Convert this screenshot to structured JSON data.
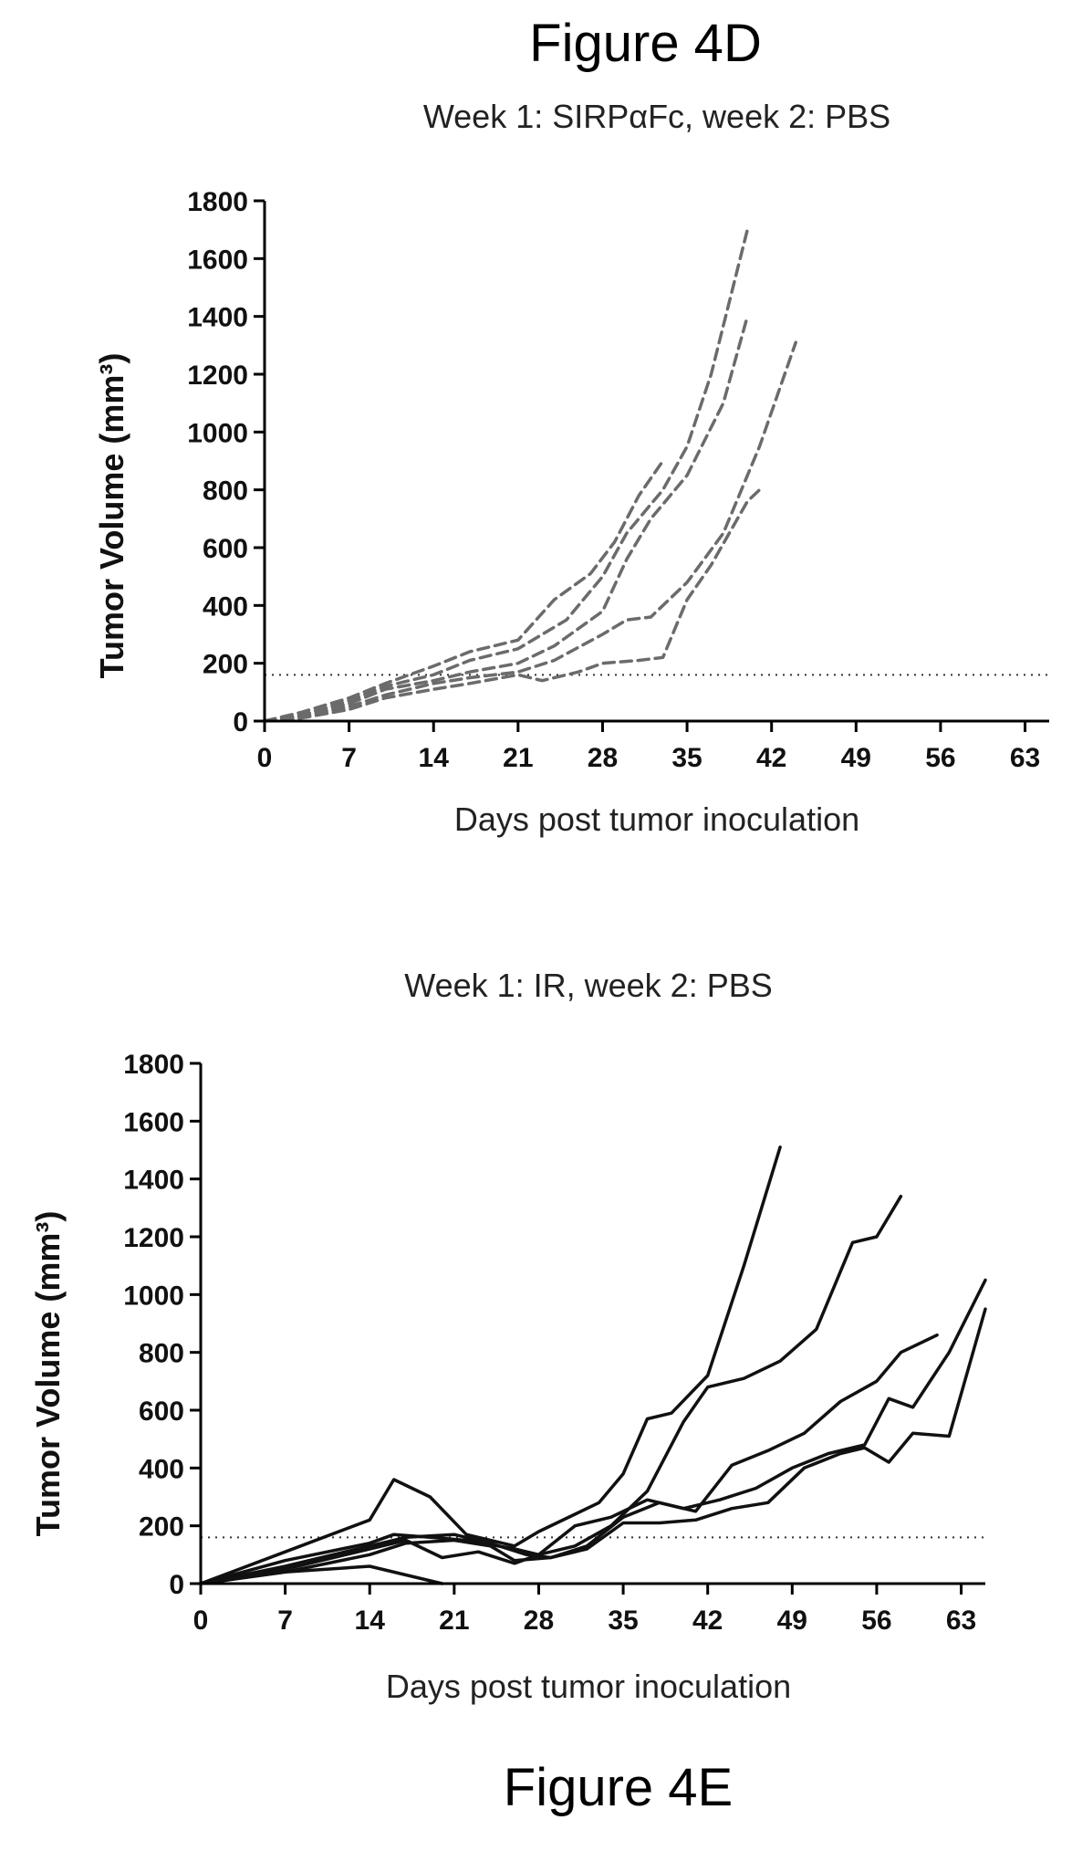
{
  "figure_labels": {
    "top": "Figure 4D",
    "bottom": "Figure 4E"
  },
  "chart_data": [
    {
      "type": "line",
      "title": "Week 1: SIRPαFc, week 2: PBS",
      "xlabel": "Days post tumor inoculation",
      "ylabel": "Tumor Volume (mm³)",
      "xlim": [
        0,
        65
      ],
      "ylim": [
        0,
        1800
      ],
      "xticks": [
        "0",
        "7",
        "14",
        "21",
        "28",
        "35",
        "42",
        "49",
        "56",
        "63"
      ],
      "yticks": [
        "0",
        "200",
        "400",
        "600",
        "800",
        "1000",
        "1200",
        "1400",
        "1600",
        "1800"
      ],
      "line_style": "dashed",
      "line_color": "#6b6b6b",
      "threshold": {
        "y": 160,
        "style": "dotted"
      },
      "series": [
        {
          "x": [
            0,
            3,
            7,
            10,
            14,
            17,
            21,
            25,
            28,
            30,
            33,
            35,
            37,
            40
          ],
          "values": [
            0,
            20,
            70,
            120,
            160,
            210,
            250,
            350,
            500,
            650,
            800,
            950,
            1200,
            1700
          ]
        },
        {
          "x": [
            0,
            3,
            7,
            10,
            14,
            17,
            21,
            24,
            27,
            29,
            31,
            33
          ],
          "values": [
            0,
            30,
            80,
            130,
            190,
            240,
            280,
            420,
            510,
            620,
            780,
            900
          ]
        },
        {
          "x": [
            0,
            3,
            7,
            10,
            14,
            17,
            21,
            24,
            28,
            30,
            32,
            35,
            38,
            40
          ],
          "values": [
            0,
            20,
            60,
            110,
            140,
            170,
            200,
            260,
            380,
            560,
            700,
            850,
            1100,
            1400
          ]
        },
        {
          "x": [
            0,
            3,
            7,
            10,
            14,
            17,
            21,
            24,
            28,
            30,
            32,
            35,
            38,
            41,
            44
          ],
          "values": [
            0,
            15,
            50,
            90,
            130,
            150,
            170,
            210,
            300,
            350,
            360,
            480,
            650,
            950,
            1310
          ]
        },
        {
          "x": [
            0,
            3,
            7,
            10,
            14,
            17,
            21,
            23,
            26,
            28,
            31,
            33,
            35,
            37,
            40,
            41
          ],
          "values": [
            0,
            10,
            40,
            80,
            110,
            130,
            160,
            140,
            170,
            200,
            210,
            220,
            420,
            540,
            760,
            800
          ]
        }
      ]
    },
    {
      "type": "line",
      "title": "Week 1: IR, week 2: PBS",
      "xlabel": "Days post tumor inoculation",
      "ylabel": "Tumor Volume (mm³)",
      "xlim": [
        0,
        65
      ],
      "ylim": [
        0,
        1800
      ],
      "xticks": [
        "0",
        "7",
        "14",
        "21",
        "28",
        "35",
        "42",
        "49",
        "56",
        "63"
      ],
      "yticks": [
        "0",
        "200",
        "400",
        "600",
        "800",
        "1000",
        "1200",
        "1400",
        "1600",
        "1800"
      ],
      "line_style": "solid",
      "line_color": "#111111",
      "threshold": {
        "y": 160,
        "style": "dotted"
      },
      "series": [
        {
          "x": [
            0,
            7,
            14,
            16,
            19,
            22,
            26,
            28,
            31,
            33,
            35,
            37,
            39,
            42,
            45,
            48
          ],
          "values": [
            0,
            110,
            220,
            360,
            300,
            170,
            130,
            180,
            240,
            280,
            380,
            570,
            590,
            720,
            1100,
            1510
          ]
        },
        {
          "x": [
            0,
            7,
            14,
            16,
            19,
            22,
            26,
            28,
            31,
            34,
            37,
            40,
            42,
            45,
            48,
            51,
            54,
            56,
            58
          ],
          "values": [
            0,
            80,
            140,
            170,
            160,
            150,
            120,
            100,
            130,
            200,
            320,
            560,
            680,
            710,
            770,
            880,
            1180,
            1200,
            1340
          ]
        },
        {
          "x": [
            0,
            7,
            14,
            17,
            21,
            24,
            27,
            29,
            32,
            35,
            38,
            41,
            44,
            47,
            50,
            53,
            56,
            58,
            61
          ],
          "values": [
            0,
            60,
            130,
            160,
            170,
            140,
            100,
            90,
            130,
            230,
            280,
            250,
            410,
            460,
            520,
            630,
            700,
            800,
            860
          ]
        },
        {
          "x": [
            0,
            7,
            14,
            17,
            20,
            23,
            26,
            28,
            31,
            34,
            37,
            40,
            43,
            46,
            49,
            52,
            55,
            57,
            59,
            62,
            65
          ],
          "values": [
            0,
            50,
            120,
            150,
            90,
            110,
            70,
            100,
            200,
            230,
            290,
            260,
            290,
            330,
            400,
            450,
            480,
            640,
            610,
            800,
            1050
          ]
        },
        {
          "x": [
            0,
            7,
            14,
            17,
            21,
            24,
            26,
            29,
            32,
            35,
            38,
            41,
            44,
            47,
            50,
            53,
            55,
            57,
            59,
            62,
            65
          ],
          "values": [
            0,
            40,
            100,
            140,
            150,
            130,
            80,
            90,
            120,
            210,
            210,
            220,
            260,
            280,
            400,
            450,
            470,
            420,
            520,
            510,
            950
          ]
        },
        {
          "x": [
            0,
            7,
            14,
            17,
            20
          ],
          "values": [
            0,
            40,
            60,
            30,
            0
          ]
        }
      ]
    }
  ]
}
